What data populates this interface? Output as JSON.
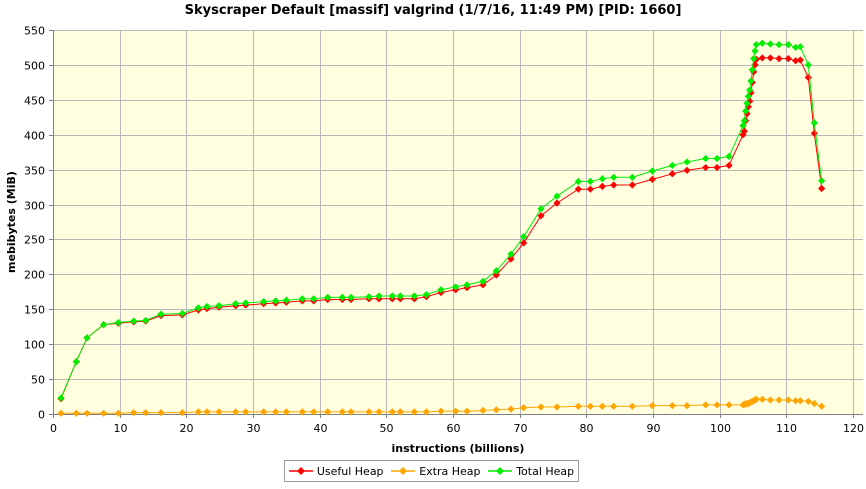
{
  "chart_data": {
    "type": "line",
    "title": "Skyscraper Default [massif] valgrind (1/7/16, 11:49 PM) [PID: 1660]",
    "xlabel": "instructions (billions)",
    "ylabel": "mebibytes (MiB)",
    "xlim": [
      0,
      120
    ],
    "ylim": [
      0,
      550
    ],
    "x_ticks": [
      "0",
      "10",
      "20",
      "30",
      "40",
      "50",
      "60",
      "70",
      "80",
      "90",
      "100",
      "110",
      "120"
    ],
    "y_ticks": [
      "0",
      "50",
      "100",
      "150",
      "200",
      "250",
      "300",
      "350",
      "400",
      "450",
      "500",
      "550"
    ],
    "grid": true,
    "legend_position": "bottom",
    "background": "#ffffe0",
    "x": [
      1.2,
      3.5,
      5.1,
      7.6,
      9.8,
      12.1,
      13.9,
      16.2,
      19.4,
      21.8,
      23.1,
      24.9,
      27.4,
      28.9,
      31.6,
      33.4,
      35.0,
      37.4,
      39.1,
      41.2,
      43.4,
      44.7,
      47.4,
      48.9,
      50.9,
      52.1,
      54.2,
      56.0,
      58.2,
      60.4,
      62.1,
      64.5,
      66.5,
      68.7,
      70.6,
      73.2,
      75.6,
      78.8,
      80.6,
      82.4,
      84.1,
      86.9,
      89.9,
      92.9,
      95.1,
      97.9,
      99.6,
      101.4,
      103.5,
      103.7,
      103.9,
      104.1,
      104.3,
      104.5,
      104.7,
      104.9,
      105.1,
      105.3,
      105.5,
      106.4,
      107.6,
      108.9,
      110.3,
      111.4,
      112.1,
      113.3,
      114.2,
      115.3
    ],
    "series": [
      {
        "name": "Useful Heap",
        "color": "#ff0000",
        "values": [
          22,
          75,
          109,
          128,
          130,
          132,
          133,
          141,
          142,
          149,
          151,
          153,
          155,
          156,
          158,
          159,
          160,
          162,
          162,
          164,
          164,
          164,
          165,
          165,
          165,
          165,
          165,
          168,
          174,
          178,
          181,
          185,
          199,
          222,
          245,
          284,
          302,
          322,
          322,
          326,
          328,
          328,
          336,
          344,
          349,
          353,
          353,
          356,
          400,
          405,
          420,
          430,
          440,
          448,
          460,
          475,
          490,
          500,
          508,
          510,
          510,
          509,
          509,
          506,
          507,
          482,
          402,
          323
        ]
      },
      {
        "name": "Extra Heap",
        "color": "#ffa500",
        "values": [
          1,
          1,
          1,
          1,
          1,
          2,
          2,
          2,
          2,
          3,
          3,
          3,
          3,
          3,
          3,
          3,
          3,
          3,
          3,
          3,
          3,
          3,
          3,
          3,
          3,
          3,
          3,
          3,
          4,
          4,
          4,
          5,
          6,
          7,
          9,
          10,
          10,
          11,
          11,
          11,
          11,
          11,
          12,
          12,
          12,
          13,
          13,
          13,
          13,
          14,
          14,
          15,
          15,
          16,
          17,
          18,
          19,
          20,
          21,
          21,
          20,
          20,
          20,
          19,
          19,
          18,
          15,
          11
        ]
      },
      {
        "name": "Total Heap",
        "color": "#00ee00",
        "values": [
          23,
          75,
          109,
          128,
          131,
          133,
          134,
          143,
          144,
          152,
          154,
          155,
          158,
          159,
          161,
          162,
          163,
          165,
          165,
          167,
          167,
          167,
          168,
          169,
          169,
          169,
          169,
          171,
          178,
          182,
          185,
          190,
          205,
          229,
          254,
          294,
          312,
          333,
          333,
          337,
          339,
          339,
          348,
          356,
          361,
          366,
          366,
          369,
          413,
          420,
          434,
          445,
          455,
          464,
          477,
          493,
          509,
          520,
          529,
          531,
          530,
          529,
          529,
          525,
          526,
          500,
          417,
          334
        ]
      }
    ]
  }
}
